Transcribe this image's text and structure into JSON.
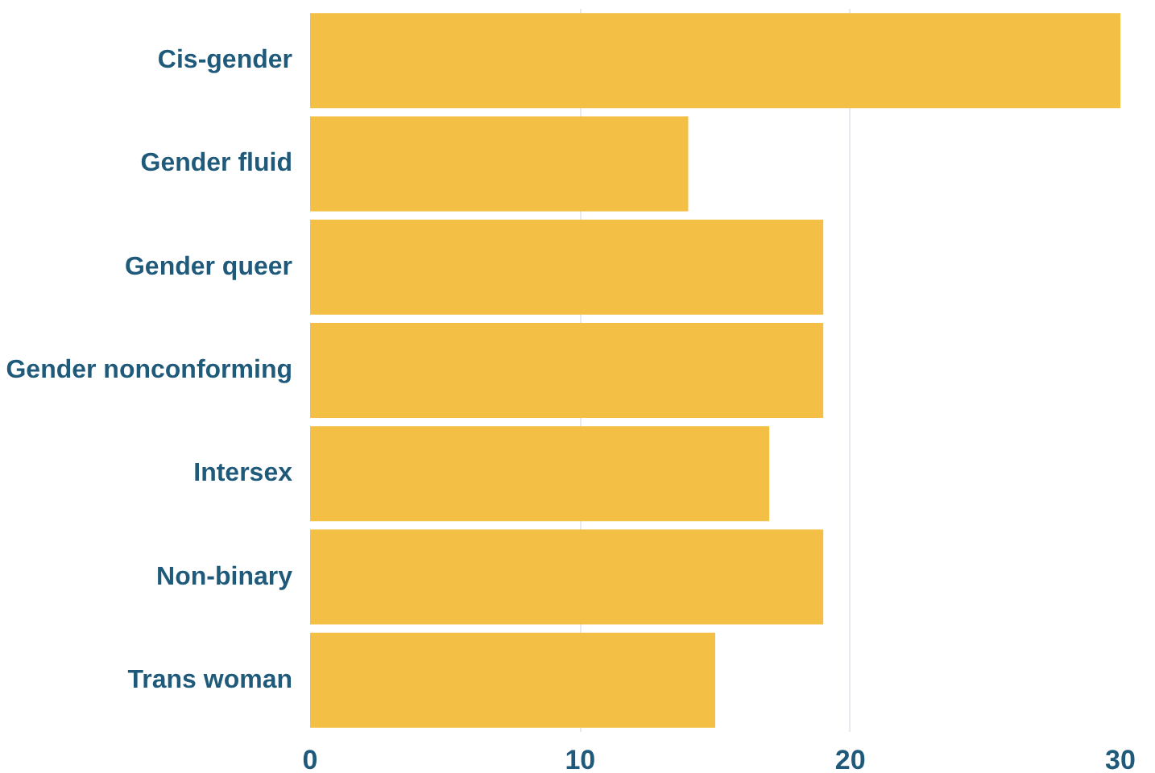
{
  "chart_data": {
    "type": "bar",
    "orientation": "horizontal",
    "categories": [
      "Cis-gender",
      "Gender fluid",
      "Gender queer",
      "Gender nonconforming",
      "Intersex",
      "Non-binary",
      "Trans woman"
    ],
    "values": [
      30,
      14,
      19,
      19,
      17,
      19,
      15
    ],
    "color": "#f4bf45",
    "xlim": [
      0,
      30
    ],
    "xticks": [
      0,
      10,
      20,
      30
    ],
    "grid": "x"
  }
}
